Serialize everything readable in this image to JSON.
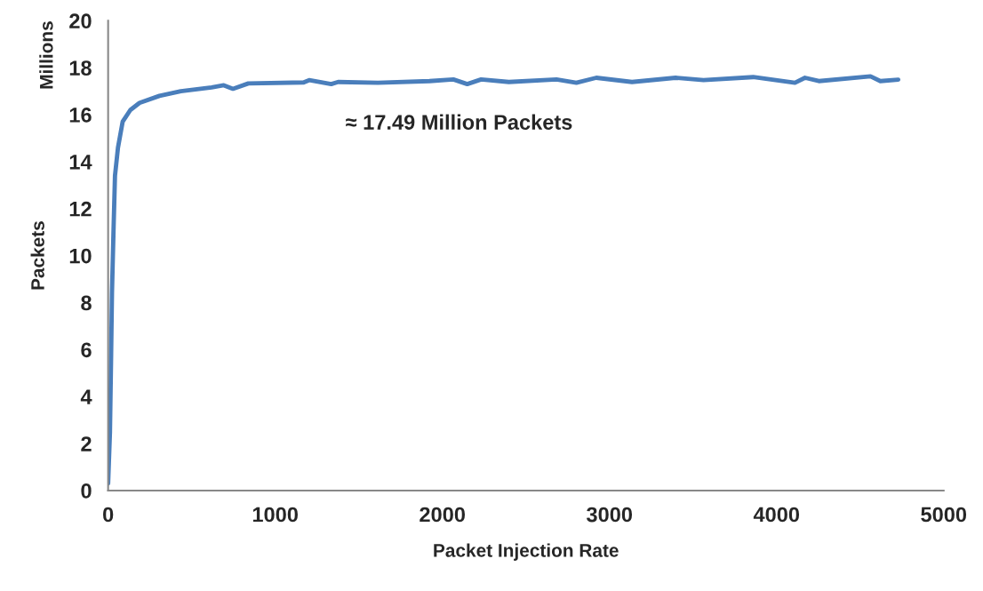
{
  "chart_data": {
    "type": "line",
    "xlabel": "Packet Injection Rate",
    "ylabel": "Packets",
    "annotations": [
      "Millions",
      "≈ 17.49 Million Packets"
    ],
    "x": [
      0,
      11,
      18,
      23,
      32,
      41,
      59,
      87,
      133,
      188,
      307,
      435,
      619,
      692,
      747,
      839,
      1170,
      1203,
      1335,
      1376,
      1614,
      1923,
      2066,
      2149,
      2232,
      2398,
      2683,
      2802,
      2921,
      3135,
      3396,
      3563,
      3860,
      4110,
      4170,
      4253,
      4562,
      4621,
      4728
    ],
    "series": [
      {
        "color": "#4a7ebb",
        "values": [
          0.3,
          2.5,
          5.8,
          8.4,
          11.0,
          13.4,
          14.6,
          15.7,
          16.2,
          16.5,
          16.8,
          17.0,
          17.16,
          17.25,
          17.1,
          17.33,
          17.37,
          17.47,
          17.3,
          17.39,
          17.36,
          17.43,
          17.5,
          17.3,
          17.5,
          17.39,
          17.5,
          17.36,
          17.57,
          17.39,
          17.57,
          17.47,
          17.6,
          17.36,
          17.57,
          17.43,
          17.63,
          17.43,
          17.49
        ]
      }
    ],
    "xlim": [
      0,
      5000
    ],
    "xticks": [
      0,
      1000,
      2000,
      3000,
      4000,
      5000
    ],
    "ylim": [
      0,
      20
    ],
    "yticks": [
      0,
      2,
      4,
      6,
      8,
      10,
      12,
      14,
      16,
      18,
      20
    ],
    "grid": false,
    "legend": false,
    "marker": "none",
    "line_style": "solid"
  }
}
